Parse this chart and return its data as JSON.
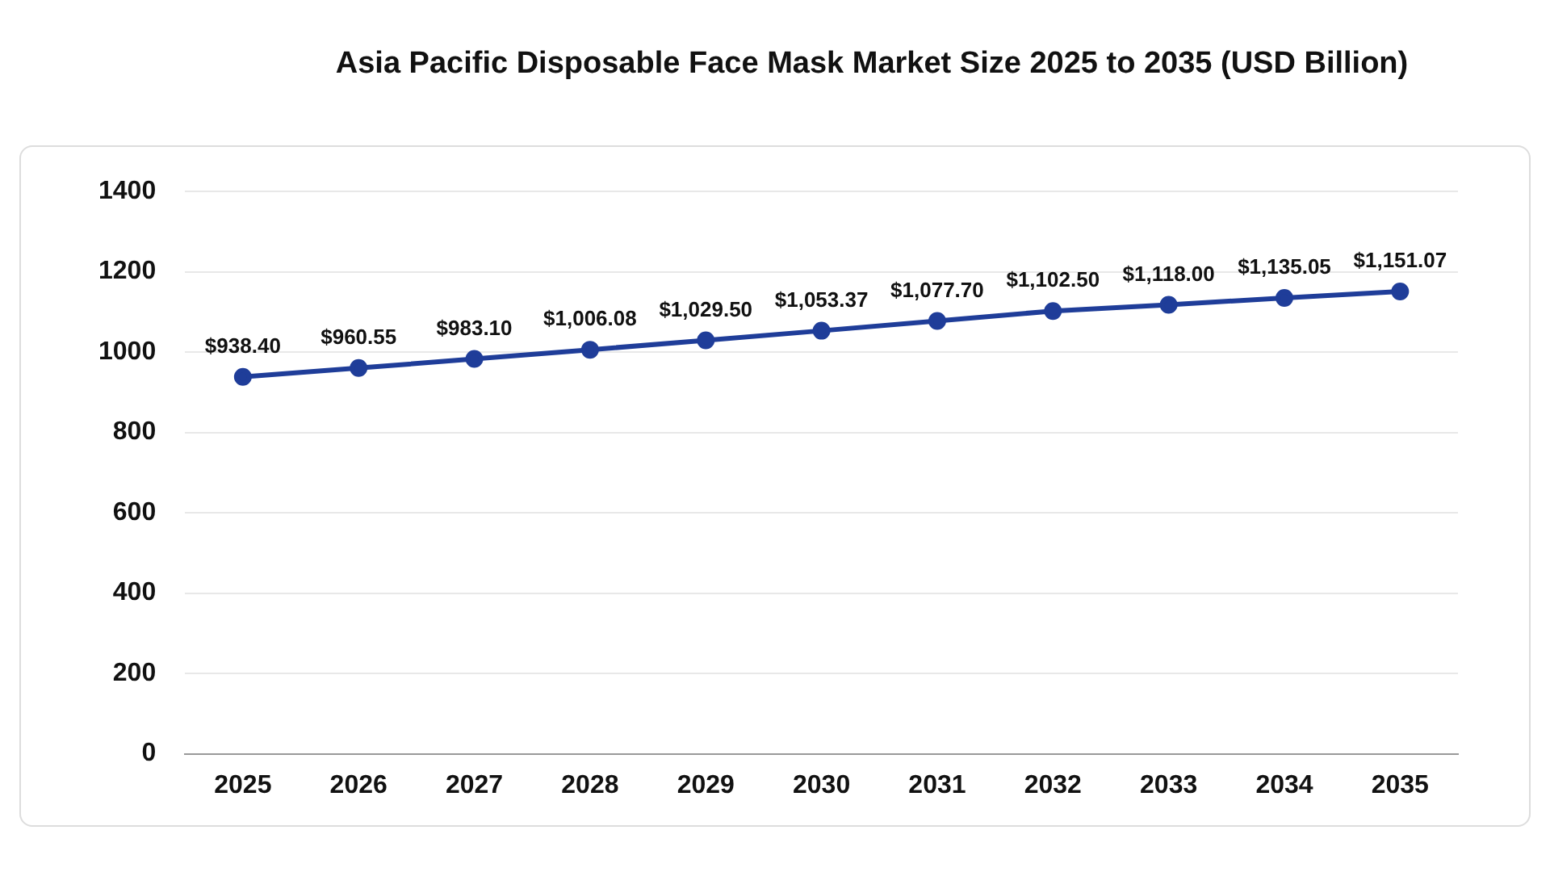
{
  "chart_data": {
    "type": "line",
    "title": "Asia Pacific Disposable Face Mask Market Size 2025 to 2035 (USD Billion)",
    "categories": [
      "2025",
      "2026",
      "2027",
      "2028",
      "2029",
      "2030",
      "2031",
      "2032",
      "2033",
      "2034",
      "2035"
    ],
    "series": [
      {
        "color": "#1f3d99",
        "values": [
          938.4,
          960.55,
          983.1,
          1006.08,
          1029.5,
          1053.37,
          1077.7,
          1102.5,
          1118.0,
          1135.05,
          1151.07
        ],
        "value_labels": [
          "$938.40",
          "$960.55",
          "$983.10",
          "$1,006.08",
          "$1,029.50",
          "$1,053.37",
          "$1,077.70",
          "$1,102.50",
          "$1,118.00",
          "$1,135.05",
          "$1,151.07"
        ]
      }
    ],
    "ylim": [
      0,
      1400
    ],
    "yticks": [
      0,
      200,
      400,
      600,
      800,
      1000,
      1200,
      1400
    ],
    "grid": "y",
    "marker": "circle",
    "line_style": "solid",
    "legend": false
  }
}
